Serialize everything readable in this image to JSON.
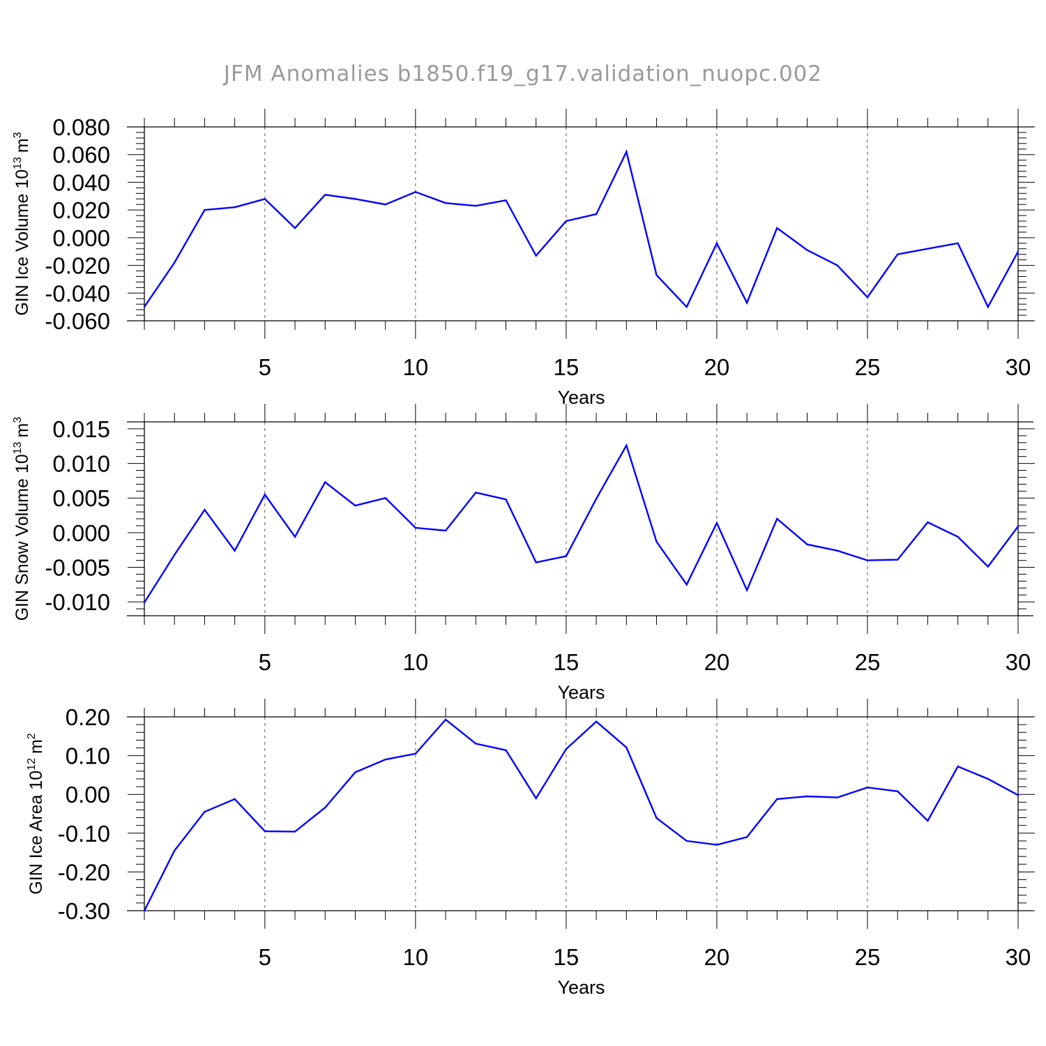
{
  "title": "JFM Anomalies b1850.f19_g17.validation_nuopc.002",
  "colors": {
    "series": "#0000ff",
    "axis": "#000000",
    "grid": "#555555",
    "title": "#9a9a9a"
  },
  "chart_data": [
    {
      "type": "line",
      "title": "",
      "xlabel": "Years",
      "ylabel_text": "GIN Ice Volume 10",
      "ylabel_exp": "13",
      "ylabel_unit": "m",
      "ylabel_unit_exp": "3",
      "xlim": [
        1,
        30
      ],
      "ylim": [
        -0.06,
        0.08
      ],
      "x_ticks": [
        5,
        10,
        15,
        20,
        25,
        30
      ],
      "x_tick_labels": [
        "5",
        "10",
        "15",
        "20",
        "25",
        "30"
      ],
      "y_ticks": [
        -0.06,
        -0.04,
        -0.02,
        0.0,
        0.02,
        0.04,
        0.06,
        0.08
      ],
      "y_tick_labels": [
        "-0.060",
        "-0.040",
        "-0.020",
        "0.000",
        "0.020",
        "0.040",
        "0.060",
        "0.080"
      ],
      "vertical_grid": "dashed at major x ticks",
      "x": [
        1,
        2,
        3,
        4,
        5,
        6,
        7,
        8,
        9,
        10,
        11,
        12,
        13,
        14,
        15,
        16,
        17,
        18,
        19,
        20,
        21,
        22,
        23,
        24,
        25,
        26,
        27,
        28,
        29,
        30
      ],
      "values": [
        -0.05,
        -0.018,
        0.02,
        0.022,
        0.028,
        0.007,
        0.031,
        0.028,
        0.024,
        0.033,
        0.025,
        0.023,
        0.027,
        -0.013,
        0.012,
        0.017,
        0.062,
        -0.027,
        -0.05,
        -0.004,
        -0.047,
        0.007,
        -0.009,
        -0.02,
        -0.043,
        -0.012,
        -0.008,
        -0.004,
        -0.05,
        -0.01
      ]
    },
    {
      "type": "line",
      "title": "",
      "xlabel": "Years",
      "ylabel_text": "GIN Snow Volume 10",
      "ylabel_exp": "13",
      "ylabel_unit": "m",
      "ylabel_unit_exp": "3",
      "xlim": [
        1,
        30
      ],
      "ylim": [
        -0.012,
        0.016
      ],
      "x_ticks": [
        5,
        10,
        15,
        20,
        25,
        30
      ],
      "x_tick_labels": [
        "5",
        "10",
        "15",
        "20",
        "25",
        "30"
      ],
      "y_ticks": [
        -0.01,
        -0.005,
        0.0,
        0.005,
        0.01,
        0.015
      ],
      "y_tick_labels": [
        "-0.010",
        "-0.005",
        "0.000",
        "0.005",
        "0.010",
        "0.015"
      ],
      "vertical_grid": "dashed at major x ticks",
      "x": [
        1,
        2,
        3,
        4,
        5,
        6,
        7,
        8,
        9,
        10,
        11,
        12,
        13,
        14,
        15,
        16,
        17,
        18,
        19,
        20,
        21,
        22,
        23,
        24,
        25,
        26,
        27,
        28,
        29,
        30
      ],
      "values": [
        -0.0101,
        -0.0032,
        0.0033,
        -0.0026,
        0.0055,
        -0.0006,
        0.0073,
        0.0039,
        0.005,
        0.0007,
        0.0003,
        0.0058,
        0.0048,
        -0.0043,
        -0.0034,
        0.0049,
        0.0126,
        -0.0013,
        -0.0075,
        0.0014,
        -0.0083,
        0.002,
        -0.0017,
        -0.0026,
        -0.004,
        -0.0039,
        0.0015,
        -0.0006,
        -0.0049,
        0.0009
      ]
    },
    {
      "type": "line",
      "title": "",
      "xlabel": "Years",
      "ylabel_text": "GIN Ice Area 10",
      "ylabel_exp": "12",
      "ylabel_unit": "m",
      "ylabel_unit_exp": "2",
      "xlim": [
        1,
        30
      ],
      "ylim": [
        -0.3,
        0.2
      ],
      "x_ticks": [
        5,
        10,
        15,
        20,
        25,
        30
      ],
      "x_tick_labels": [
        "5",
        "10",
        "15",
        "20",
        "25",
        "30"
      ],
      "y_ticks": [
        -0.3,
        -0.2,
        -0.1,
        0.0,
        0.1,
        0.2
      ],
      "y_tick_labels": [
        "-0.30",
        "-0.20",
        "-0.10",
        "0.00",
        "0.10",
        "0.20"
      ],
      "vertical_grid": "dashed at major x ticks",
      "x": [
        1,
        2,
        3,
        4,
        5,
        6,
        7,
        8,
        9,
        10,
        11,
        12,
        13,
        14,
        15,
        16,
        17,
        18,
        19,
        20,
        21,
        22,
        23,
        24,
        25,
        26,
        27,
        28,
        29,
        30
      ],
      "values": [
        -0.3,
        -0.145,
        -0.045,
        -0.012,
        -0.095,
        -0.096,
        -0.034,
        0.057,
        0.09,
        0.105,
        0.193,
        0.131,
        0.114,
        -0.01,
        0.117,
        0.188,
        0.121,
        -0.061,
        -0.12,
        -0.13,
        -0.11,
        -0.012,
        -0.005,
        -0.008,
        0.018,
        0.008,
        -0.068,
        0.072,
        0.04,
        -0.002
      ]
    }
  ]
}
